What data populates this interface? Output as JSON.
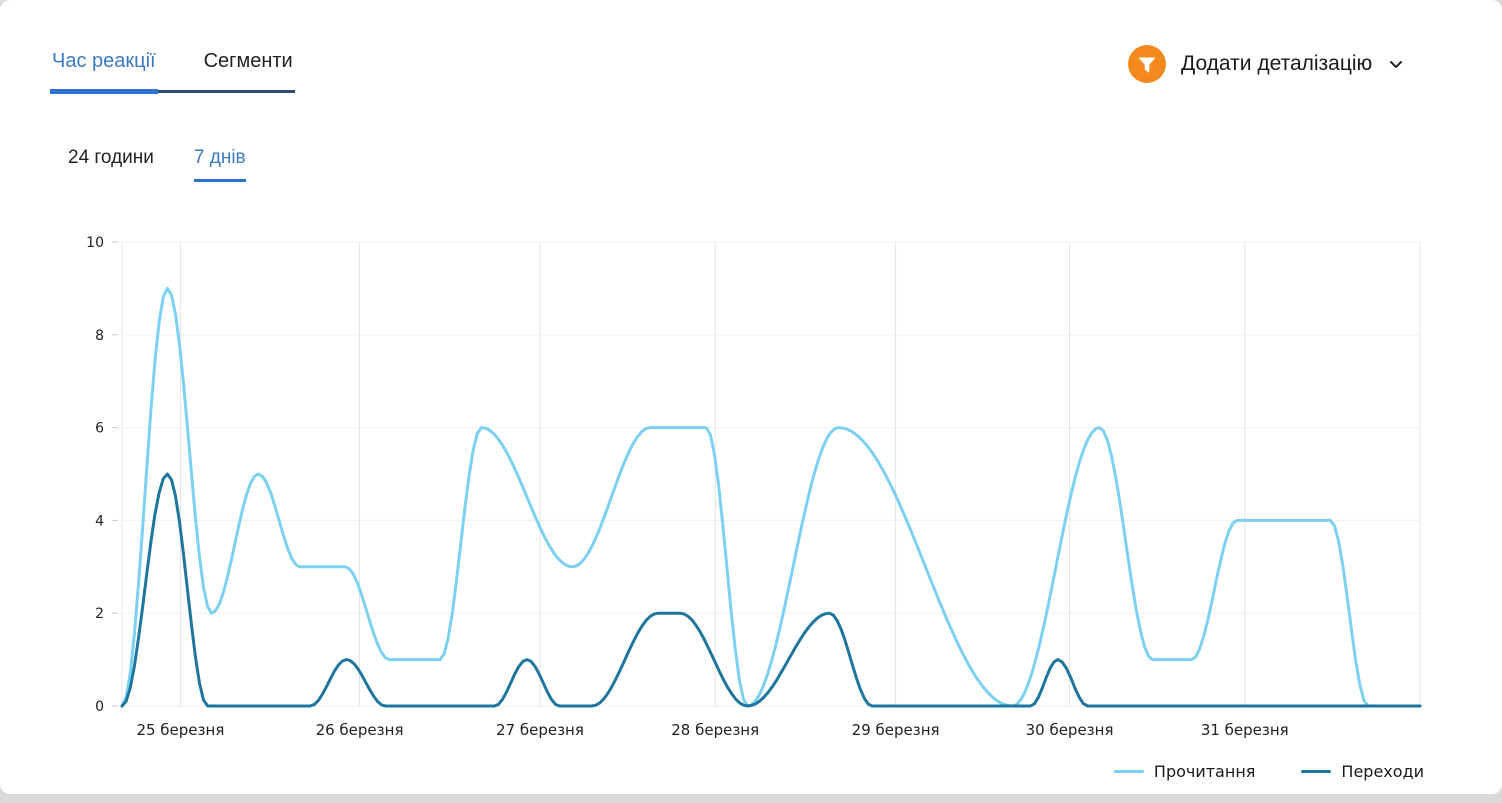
{
  "tabs": {
    "reaction_time": "Час реакції",
    "segments": "Сегменти"
  },
  "detail_control": {
    "label": "Додати деталізацію",
    "icon": "funnel-icon"
  },
  "period_tabs": {
    "h24": "24 години",
    "d7": "7 днів"
  },
  "colors": {
    "accent_blue": "#2f72d2",
    "tab_text_blue": "#3b7ac4",
    "tab_border_navy": "#2e4a74",
    "funnel_orange": "#f28a20",
    "series_light": "#7cd1f2",
    "series_dark": "#1e759d"
  },
  "chart_data": {
    "type": "line",
    "title": "",
    "xlabel": "",
    "ylabel": "",
    "ylim": [
      0,
      10
    ],
    "y_ticks": [
      0,
      2,
      4,
      6,
      8,
      10
    ],
    "grid": true,
    "legend_position": "bottom-right",
    "x_ticks": [
      {
        "pos": 0.045,
        "label": "25 березня"
      },
      {
        "pos": 0.183,
        "label": "26 березня"
      },
      {
        "pos": 0.322,
        "label": "27 березня"
      },
      {
        "pos": 0.457,
        "label": "28 березня"
      },
      {
        "pos": 0.596,
        "label": "29 березня"
      },
      {
        "pos": 0.73,
        "label": "30 березня"
      },
      {
        "pos": 0.865,
        "label": "31 березня"
      },
      {
        "pos": 1.0,
        "label": ""
      }
    ],
    "series": [
      {
        "name": "Прочитання",
        "color": "#7cd1f2",
        "points": [
          [
            0.0,
            0
          ],
          [
            0.035,
            9
          ],
          [
            0.069,
            2
          ],
          [
            0.105,
            5
          ],
          [
            0.137,
            3
          ],
          [
            0.172,
            3
          ],
          [
            0.206,
            1
          ],
          [
            0.245,
            1
          ],
          [
            0.277,
            6
          ],
          [
            0.347,
            3
          ],
          [
            0.407,
            6
          ],
          [
            0.45,
            6
          ],
          [
            0.482,
            0
          ],
          [
            0.552,
            6
          ],
          [
            0.686,
            0
          ],
          [
            0.753,
            6
          ],
          [
            0.794,
            1
          ],
          [
            0.824,
            1
          ],
          [
            0.859,
            4
          ],
          [
            0.931,
            4
          ],
          [
            0.96,
            0
          ],
          [
            1.0,
            0
          ]
        ]
      },
      {
        "name": "Переходи",
        "color": "#1e759d",
        "points": [
          [
            0.0,
            0
          ],
          [
            0.035,
            5
          ],
          [
            0.066,
            0
          ],
          [
            0.145,
            0
          ],
          [
            0.173,
            1
          ],
          [
            0.203,
            0
          ],
          [
            0.287,
            0
          ],
          [
            0.312,
            1
          ],
          [
            0.337,
            0
          ],
          [
            0.362,
            0
          ],
          [
            0.413,
            2
          ],
          [
            0.43,
            2
          ],
          [
            0.482,
            0
          ],
          [
            0.545,
            2
          ],
          [
            0.578,
            0
          ],
          [
            0.7,
            0
          ],
          [
            0.721,
            1
          ],
          [
            0.744,
            0
          ],
          [
            1.0,
            0
          ]
        ]
      }
    ]
  }
}
